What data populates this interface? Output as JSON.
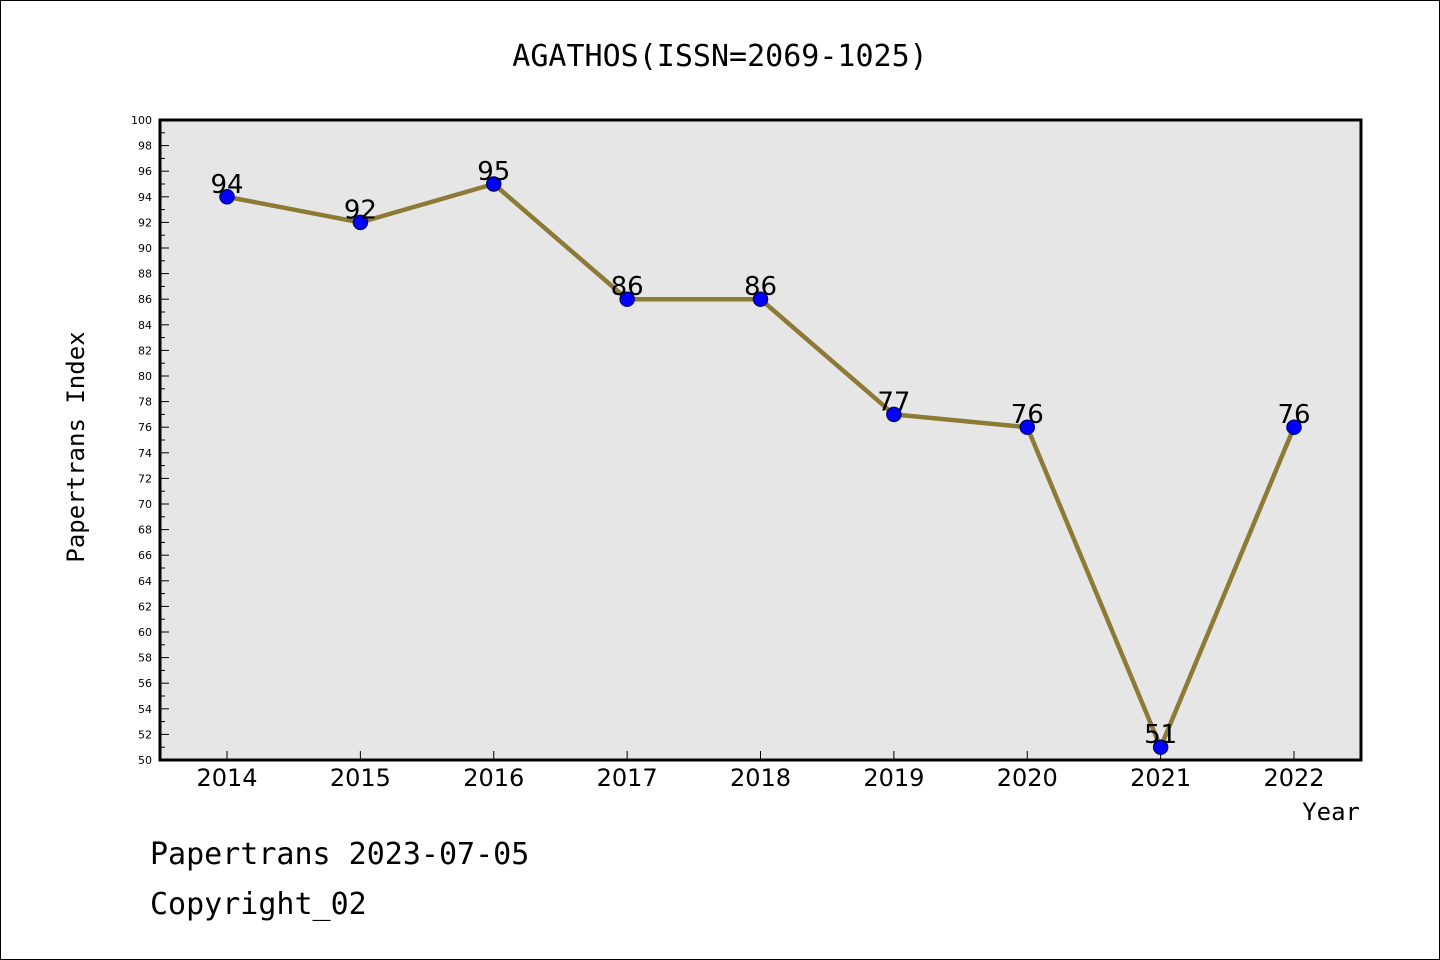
{
  "footer": {
    "line1": "Papertrans 2023-07-05",
    "line2": "Copyright_02"
  },
  "chart_data": {
    "type": "line",
    "title": "AGATHOS(ISSN=2069-1025)",
    "xlabel": "Year",
    "ylabel": "Papertrans Index",
    "x": [
      "2014",
      "2015",
      "2016",
      "2017",
      "2018",
      "2019",
      "2020",
      "2021",
      "2022"
    ],
    "series": [
      {
        "values": [
          94,
          92,
          95,
          86,
          86,
          77,
          76,
          51,
          76
        ]
      }
    ],
    "ylim": [
      50,
      100
    ],
    "ytick_step": 2,
    "grid": false,
    "data_labels": true,
    "colors": {
      "line": "#8c7a35",
      "marker": "#0000ff",
      "marker_edge": "#000080",
      "plot_background": "#e6e6e6"
    }
  }
}
